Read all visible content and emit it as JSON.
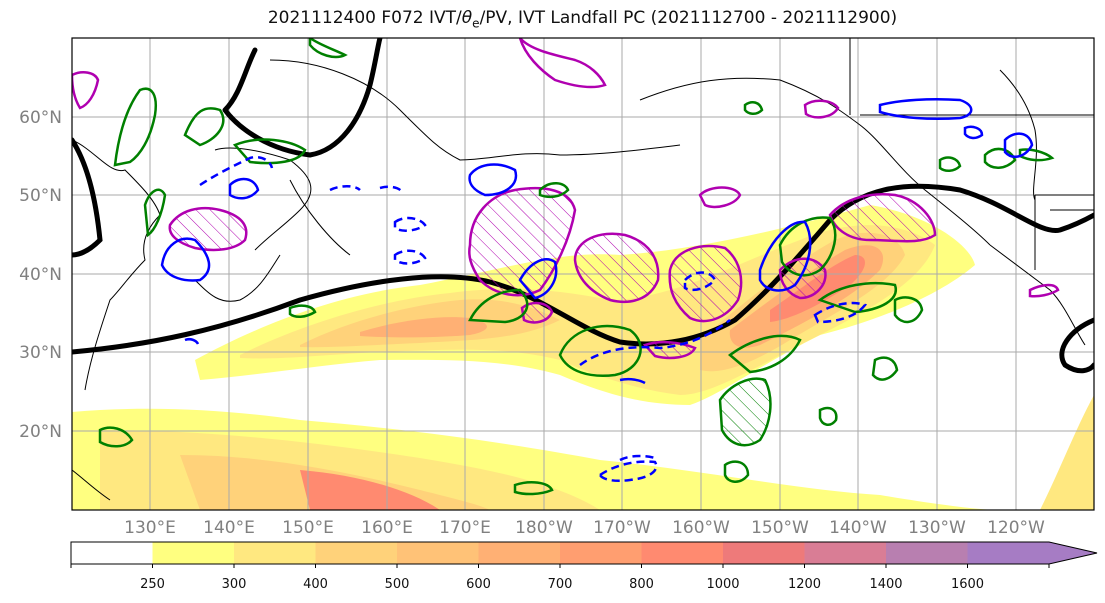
{
  "title_main": "2021112400 F072 IVT/",
  "title_theta": "θ",
  "title_sub": "e",
  "title_rest": "/PV, IVT Landfall PC (2021112700 - 2021112900)",
  "lat_labels": [
    "60°N",
    "50°N",
    "40°N",
    "30°N",
    "20°N"
  ],
  "lon_labels": [
    "130°E",
    "140°E",
    "150°E",
    "160°E",
    "170°E",
    "180°W",
    "170°W",
    "160°W",
    "150°W",
    "140°W",
    "130°W",
    "120°W"
  ],
  "colorbar": {
    "ticks": [
      "250",
      "300",
      "400",
      "500",
      "600",
      "700",
      "800",
      "1000",
      "1200",
      "1400",
      "1600"
    ],
    "colors": [
      "#ffffff",
      "#ffff80",
      "#ffe880",
      "#ffd27a",
      "#ffc277",
      "#ffb074",
      "#ff9e70",
      "#ff8a70",
      "#ee7a7a",
      "#d97d95",
      "#b87fb0",
      "#a67cc4",
      "#a67cc4"
    ]
  },
  "colors": {
    "pv_contour": "#000000",
    "theta_e_positive": "#008000",
    "theta_e_negative": "#0000ff",
    "landfall_pc": "#b000b0",
    "coastline": "#000000",
    "grid": "#aaaaaa"
  }
}
